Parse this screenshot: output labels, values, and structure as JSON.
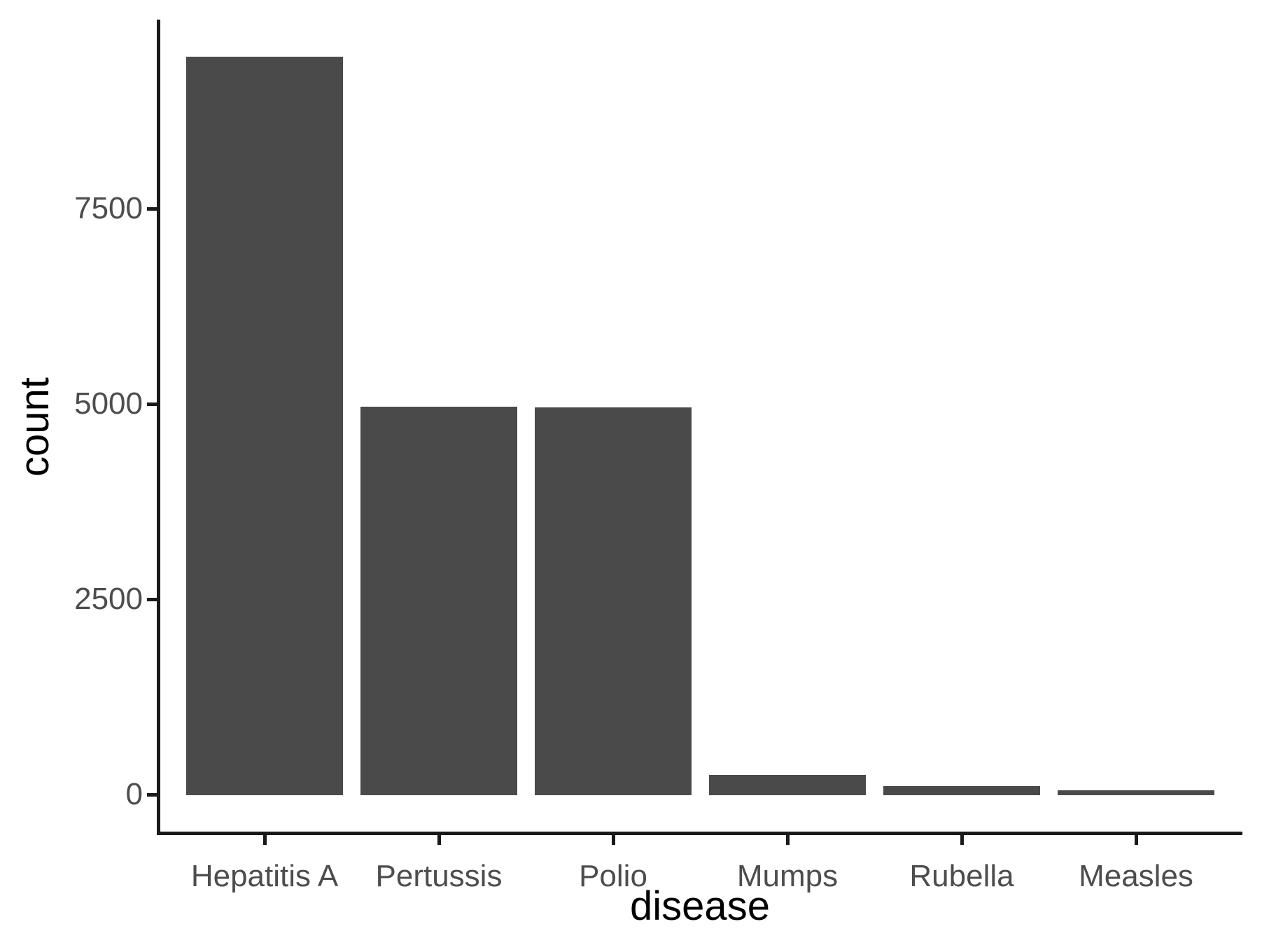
{
  "chart_data": {
    "type": "bar",
    "title": "",
    "xlabel": "disease",
    "ylabel": "count",
    "categories": [
      "Hepatitis A",
      "Pertussis",
      "Polio",
      "Mumps",
      "Rubella",
      "Measles"
    ],
    "values": [
      9450,
      4970,
      4960,
      260,
      115,
      60
    ],
    "series": [
      {
        "name": "count",
        "values": [
          9450,
          4970,
          4960,
          260,
          115,
          60
        ]
      }
    ],
    "y_ticks": [
      0,
      2500,
      5000,
      7500
    ],
    "ylim": [
      0,
      9930
    ],
    "grid": "off",
    "legend": "none",
    "bar_color": "#4a4a4a",
    "axis_text_color": "#4d4d4d",
    "axis_line_color": "#1a1a1a",
    "title_color": "#000000",
    "background": "#ffffff",
    "style": "ggplot2 theme_classic"
  }
}
